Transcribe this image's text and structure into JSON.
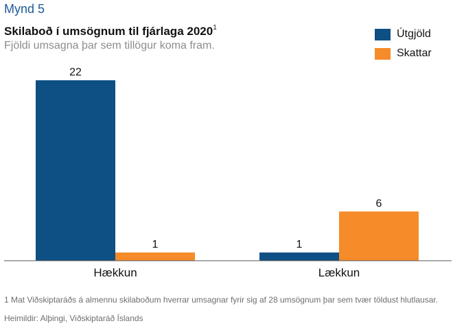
{
  "figure_label": "Mynd 5",
  "title": "Skilaboð í umsögnum til fjárlaga 2020",
  "title_sup": "1",
  "subtitle": "Fjöldi umsagna þar sem tillögur koma fram.",
  "footnote": "1 Mat Viðskiptaráðs á almennu skilaboðum hverrar umsagnar fyrir sig af 28 umsögnum þar sem tvær töldust hlutlausar.",
  "source": "Heimildir: Alþingi, Viðskiptaráð Íslands",
  "chart_data": {
    "type": "bar",
    "categories": [
      "Hækkun",
      "Lækkun"
    ],
    "series": [
      {
        "name": "Útgjöld",
        "color": "#0e4f84",
        "values": [
          22,
          1
        ]
      },
      {
        "name": "Skattar",
        "color": "#f68b29",
        "values": [
          1,
          6
        ]
      }
    ],
    "ylim": [
      0,
      22
    ],
    "grid": false,
    "legend_position": "top-right"
  }
}
